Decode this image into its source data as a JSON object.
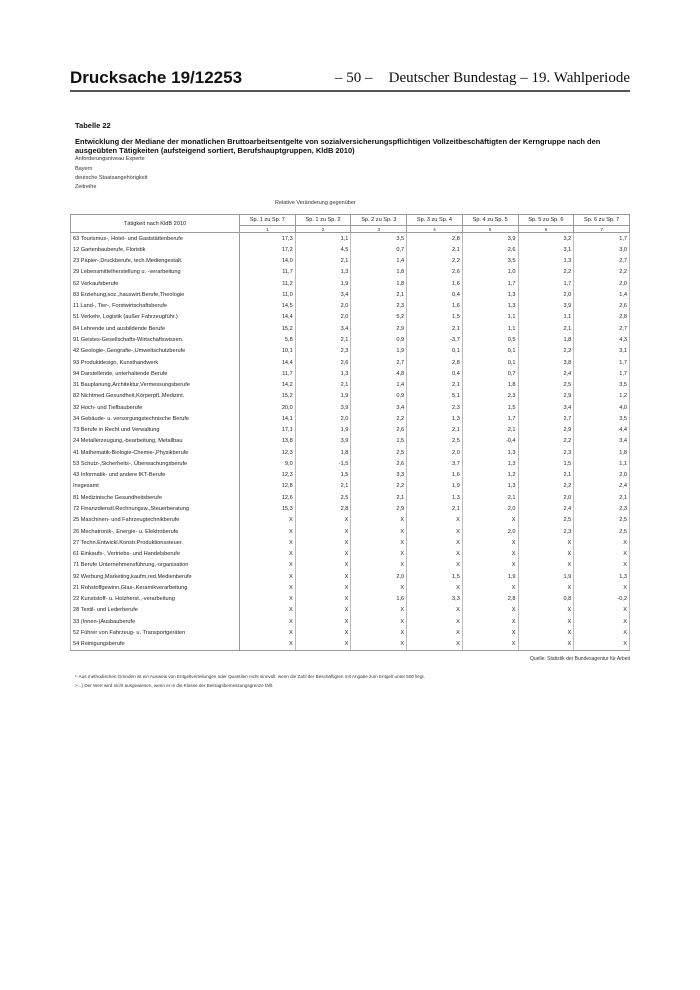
{
  "header": {
    "doc_prefix": "Drucksache 19/",
    "doc_number": "12253",
    "page": "– 50 –",
    "publisher": "Deutscher Bundestag – 19. Wahlperiode"
  },
  "table_label": "Tabelle 22",
  "title": "Entwicklung der Mediane der monatlichen Bruttoarbeitsentgelte von sozialversicherungspflichtigen Vollzeitbeschäftigten der Kerngruppe nach den ausgeübten Tätigkeiten (aufsteigend sortiert, Berufshauptgruppen, KldB 2010)",
  "meta": [
    "Anforderungsniveau Experte",
    "Bayern",
    "deutsche Staatsangehörigkeit",
    "Zeitreihe"
  ],
  "relative_label": "Relative Veränderung gegenüber",
  "columns": {
    "first": "Tätigkeit nach KldB 2010",
    "headers": [
      "Sp. 1 zu Sp. 7",
      "Sp. 1 zu Sp. 2",
      "Sp. 2 zu Sp. 3",
      "Sp. 3 zu Sp. 4",
      "Sp. 4 zu Sp. 5",
      "Sp. 5 zu Sp. 6",
      "Sp. 6 zu Sp. 7"
    ],
    "numbers": [
      "1",
      "2",
      "3",
      "4",
      "5",
      "6",
      "7"
    ]
  },
  "rows": [
    [
      "63 Tourismus-, Hotel- und Gaststättenberufe",
      "17,3",
      "1,1",
      "3,5",
      "2,8",
      "3,9",
      "3,2",
      "1,7"
    ],
    [
      "12 Gartenbauberufe, Floristik",
      "17,2",
      "4,5",
      "0,7",
      "2,1",
      "2,6",
      "3,1",
      "3,0"
    ],
    [
      "23 Papier-,Druckberufe, tech.Mediengestalt.",
      "14,0",
      "2,1",
      "1,4",
      "2,2",
      "3,5",
      "1,3",
      "2,7"
    ],
    [
      "29 Lebensmittelherstellung u. -verarbeitung",
      "11,7",
      "1,3",
      "1,8",
      "2,6",
      "1,0",
      "2,2",
      "2,2"
    ],
    [
      "62 Verkaufsberufe",
      "11,2",
      "1,9",
      "1,8",
      "1,6",
      "1,7",
      "1,7",
      "2,0"
    ],
    [
      "83 Erziehung,soz.,hauswirt.Berufe,Theologie",
      "11,0",
      "3,4",
      "2,1",
      "0,4",
      "1,3",
      "2,0",
      "1,4"
    ],
    [
      "11 Land-, Tier-, Forstwirtschaftsberufe",
      "14,5",
      "2,0",
      "2,3",
      "1,6",
      "1,3",
      "3,9",
      "2,6"
    ],
    [
      "51 Verkehr, Logistik (außer Fahrzeugführ.)",
      "14,4",
      "2,0",
      "5,2",
      "1,5",
      "1,1",
      "1,1",
      "2,8"
    ],
    [
      "84 Lehrende und ausbildende Berufe",
      "15,2",
      "3,4",
      "2,9",
      "2,1",
      "1,1",
      "2,1",
      "2,7"
    ],
    [
      "91 Geistes-Gesellschafts-Wirtschaftswissen.",
      "5,8",
      "2,1",
      "0,9",
      "-3,7",
      "0,5",
      "1,8",
      "4,3"
    ],
    [
      "42 Geologie-,Geografie-,Umweltschutzberufe",
      "10,1",
      "2,3",
      "1,9",
      "0,1",
      "0,1",
      "2,2",
      "3,1"
    ],
    [
      "93 Produktdesign, Kunsthandwerk",
      "14,4",
      "2,6",
      "2,7",
      "2,8",
      "0,1",
      "3,8",
      "1,7"
    ],
    [
      "94 Darstellende, unterhaltende Berufe",
      "11,7",
      "1,3",
      "4,8",
      "0,4",
      "0,7",
      "2,4",
      "1,7"
    ],
    [
      "31 Bauplanung,Architektur,Vermessungsberufe",
      "14,2",
      "2,1",
      "1,4",
      "2,1",
      "1,8",
      "2,5",
      "3,5"
    ],
    [
      "82 Nichtmed.Gesundheit,Körperpfl.,Medizint.",
      "15,2",
      "1,9",
      "0,9",
      "5,1",
      "2,3",
      "2,9",
      "1,2"
    ],
    [
      "32 Hoch- und Tiefbauberufe",
      "20,0",
      "3,9",
      "3,4",
      "2,3",
      "1,5",
      "3,4",
      "4,0"
    ],
    [
      "34 Gebäude- u. versorgungstechnische Berufe",
      "14,1",
      "2,0",
      "2,2",
      "1,3",
      "1,7",
      "2,7",
      "3,5"
    ],
    [
      "73 Berufe in Recht und Verwaltung",
      "17,1",
      "1,9",
      "2,6",
      "2,1",
      "2,1",
      "2,9",
      "4,4"
    ],
    [
      "24 Metallerzeugung,-bearbeitung, Metallbau",
      "13,8",
      "3,9",
      "1,5",
      "2,5",
      "-0,4",
      "2,2",
      "3,4"
    ],
    [
      "41 Mathematik-Biologie-Chemie-,Physikberufe",
      "12,3",
      "1,8",
      "2,5",
      "2,0",
      "1,3",
      "2,3",
      "1,8"
    ],
    [
      "53 Schutz-,Sicherheits-, Überwachungsberufe",
      "9,0",
      "-1,5",
      "2,6",
      "3,7",
      "1,3",
      "1,5",
      "1,1"
    ],
    [
      "43 Informatik- und andere IKT-Berufe",
      "12,3",
      "1,5",
      "3,3",
      "1,6",
      "1,2",
      "2,1",
      "2,0"
    ],
    [
      "Insgesamt",
      "12,8",
      "2,1",
      "2,2",
      "1,9",
      "1,3",
      "2,2",
      "2,4"
    ],
    [
      "81 Medizinische Gesundheitsberufe",
      "12,6",
      "2,5",
      "2,1",
      "1,3",
      "2,1",
      "2,0",
      "2,1"
    ],
    [
      "72 Finanzdienstl.Rechnungsw.,Steuerberatung",
      "15,3",
      "2,8",
      "2,9",
      "2,1",
      "2,0",
      "2,4",
      "2,3"
    ],
    [
      "25 Maschinen- und Fahrzeugtechnikberufe",
      "X",
      "X",
      "X",
      "X",
      "X",
      "2,5",
      "2,5"
    ],
    [
      "26 Mechatronik-, Energie- u. Elektroberufe",
      "X",
      "X",
      "X",
      "X",
      "2,0",
      "2,3",
      "2,5"
    ],
    [
      "27 Techn.Entwickl.Konstr.Produktionssteuer.",
      "X",
      "X",
      "X",
      "X",
      "X",
      "X",
      "X"
    ],
    [
      "61 Einkaufs-, Vertriebs- und Handelsberufe",
      "X",
      "X",
      "X",
      "X",
      "X",
      "X",
      "X"
    ],
    [
      "71 Berufe Unternehmensführung,-organisation",
      "X",
      "X",
      "X",
      "X",
      "X",
      "X",
      "X"
    ],
    [
      "92 Werbung,Marketing,kaufm,red.Medienberufe",
      "X",
      "X",
      "2,0",
      "1,5",
      "1,9",
      "1,9",
      "1,3"
    ],
    [
      "21 Rohstoffgewinn,Glas-,Keramikverarbeitung",
      "X",
      "X",
      "X",
      "X",
      "X",
      "X",
      "X"
    ],
    [
      "22 Kunststoff- u. Holzherst.,-verarbeitung",
      "X",
      "X",
      "1,6",
      "3,3",
      "2,8",
      "0,8",
      "-0,2"
    ],
    [
      "28 Textil- und Lederberufe",
      "X",
      "X",
      "X",
      "X",
      "X",
      "X",
      "X"
    ],
    [
      "33 (Innen-)Ausbauberufe",
      "X",
      "X",
      "X",
      "X",
      "X",
      "X",
      "X"
    ],
    [
      "52 Führer von Fahrzeug- u. Transportgeräten",
      "X",
      "X",
      "X",
      "X",
      "X",
      "X",
      "X"
    ],
    [
      "54 Reinigungsberufe",
      "X",
      "X",
      "X",
      "X",
      "X",
      "X",
      "X"
    ]
  ],
  "source": "Quelle: Statistik der Bundesagentur für Arbeit",
  "footnotes": [
    "¹⁾ Aus methodischen Gründen ist ein Ausweis von Entgeltverteilungen oder Quantilen nicht sinnvoll, wenn die Zahl der Beschäftigten mit Angabe zum Entgelt unter 500 liegt.",
    ">...) Der Wert wird nicht ausgewiesen, wenn er in die Klasse der Beitragsbemessungsgrenze fällt."
  ]
}
